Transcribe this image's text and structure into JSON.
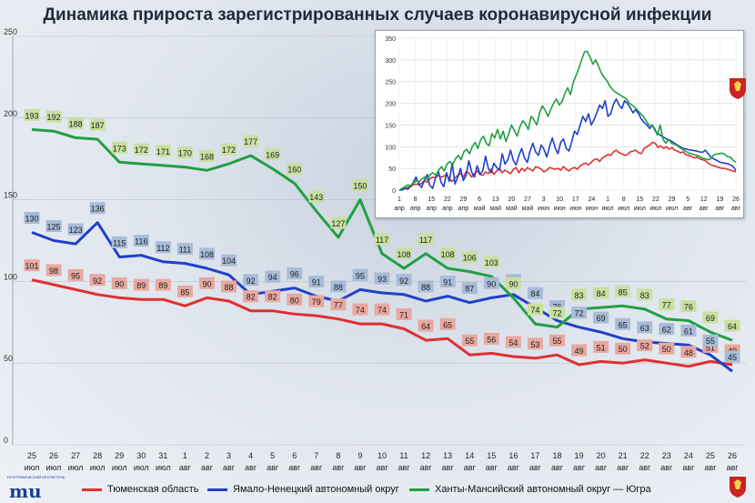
{
  "title": "Динамика прироста зарегистрированных случаев коронавирусной инфекции",
  "colors": {
    "tyumen": "#e03030",
    "yamal": "#2040c8",
    "hmao": "#20a040",
    "tyumen_box": "#e8a8a0",
    "yamal_box": "#a8bcd8",
    "hmao_box": "#c8e0a0"
  },
  "legend": [
    {
      "name": "Тюменская область",
      "color": "#e03030"
    },
    {
      "name": "Ямало-Ненецкий автономный округ",
      "color": "#2040c8"
    },
    {
      "name": "Ханты-Мансийский автономный округ — Югра",
      "color": "#20a040"
    }
  ],
  "logo_left": {
    "mark": "mu",
    "caption": "ГЕОГРАФИЧЕСКИЙ БЮЛЛЕТЕНЬ"
  },
  "logo_right_icon": "coat-of-arms-icon",
  "chart_data": [
    {
      "type": "line",
      "title": "Динамика прироста зарегистрированных случаев коронавирусной инфекции",
      "categories": [
        "25 июл",
        "26 июл",
        "27 июл",
        "28 июл",
        "29 июл",
        "30 июл",
        "31 июл",
        "1 авг",
        "2 авг",
        "3 авг",
        "4 авг",
        "5 авг",
        "6 авг",
        "7 авг",
        "8 авг",
        "9 авг",
        "10 авг",
        "11 авг",
        "12 авг",
        "13 авг",
        "14 авг",
        "15 авг",
        "16 авг",
        "17 авг",
        "18 авг",
        "19 авг",
        "20 авг",
        "21 авг",
        "22 авг",
        "23 авг",
        "24 авг",
        "25 авг",
        "26 авг"
      ],
      "ylim": [
        0,
        250
      ],
      "yticks": [
        0,
        50,
        100,
        150,
        200,
        250
      ],
      "grid": true,
      "legend_position": "bottom",
      "series": [
        {
          "name": "Тюменская область",
          "values": [
            101,
            98,
            95,
            92,
            90,
            89,
            89,
            85,
            90,
            88,
            82,
            82,
            80,
            79,
            77,
            74,
            74,
            71,
            64,
            65,
            55,
            56,
            54,
            53,
            55,
            49,
            51,
            50,
            52,
            50,
            48,
            51,
            49
          ]
        },
        {
          "name": "Ямало-Ненецкий автономный округ",
          "values": [
            130,
            125,
            123,
            136,
            115,
            116,
            112,
            111,
            108,
            104,
            92,
            94,
            96,
            91,
            88,
            95,
            93,
            92,
            88,
            91,
            87,
            90,
            92,
            84,
            76,
            72,
            69,
            65,
            63,
            62,
            61,
            55,
            45
          ]
        },
        {
          "name": "Ханты-Мансийский автономный округ — Югра",
          "values": [
            193,
            192,
            188,
            187,
            173,
            172,
            171,
            170,
            168,
            172,
            177,
            169,
            160,
            143,
            127,
            150,
            117,
            108,
            117,
            108,
            106,
            103,
            90,
            74,
            72,
            83,
            84,
            85,
            83,
            77,
            76,
            69,
            64
          ]
        }
      ]
    },
    {
      "type": "line",
      "title": "",
      "x_tick_labels": [
        "1 апр",
        "8 апр",
        "15 апр",
        "22 апр",
        "29 апр",
        "6 май",
        "13 май",
        "20 май",
        "27 май",
        "3 июн",
        "10 июн",
        "17 июн",
        "24 июн",
        "1 июл",
        "8 июл",
        "15 июл",
        "22 июл",
        "29 июл",
        "5 авг",
        "12 авг",
        "19 авг",
        "26 авг"
      ],
      "ylim": [
        0,
        350
      ],
      "yticks": [
        0,
        50,
        100,
        150,
        200,
        250,
        300,
        350
      ],
      "grid": true,
      "series": [
        {
          "name": "Тюменская область",
          "values": [
            0,
            2,
            4,
            6,
            8,
            12,
            14,
            12,
            16,
            22,
            18,
            26,
            30,
            28,
            34,
            30,
            32,
            36,
            26,
            20,
            28,
            34,
            38,
            30,
            42,
            40,
            30,
            38,
            44,
            36,
            34,
            42,
            38,
            48,
            36,
            44,
            50,
            40,
            46,
            42,
            38,
            48,
            52,
            40,
            50,
            44,
            52,
            48,
            44,
            54,
            52,
            48,
            42,
            46,
            52,
            50,
            48,
            50,
            46,
            54,
            48,
            44,
            50,
            52,
            48,
            56,
            60,
            62,
            58,
            64,
            70,
            72,
            66,
            74,
            78,
            82,
            80,
            88,
            92,
            86,
            84,
            80,
            82,
            88,
            90,
            92,
            86,
            84,
            96,
            100,
            104,
            110,
            108,
            98,
            102,
            96,
            100,
            94,
            98,
            92,
            90,
            86,
            88,
            82,
            80,
            78,
            74,
            76,
            72,
            70,
            68,
            62,
            58,
            56,
            54,
            52,
            50,
            50,
            48,
            46,
            44,
            42
          ]
        },
        {
          "name": "Ямало-Ненецкий автономный округ",
          "values": [
            0,
            0,
            4,
            2,
            8,
            18,
            30,
            14,
            6,
            22,
            36,
            10,
            4,
            28,
            44,
            18,
            8,
            40,
            20,
            62,
            14,
            30,
            50,
            22,
            34,
            68,
            42,
            30,
            56,
            36,
            44,
            78,
            50,
            40,
            62,
            52,
            46,
            84,
            60,
            70,
            92,
            68,
            58,
            80,
            96,
            74,
            64,
            90,
            108,
            88,
            80,
            104,
            94,
            76,
            100,
            120,
            98,
            84,
            110,
            118,
            96,
            90,
            112,
            136,
            128,
            150,
            170,
            158,
            176,
            150,
            162,
            178,
            196,
            188,
            206,
            170,
            176,
            198,
            210,
            196,
            188,
            206,
            200,
            190,
            178,
            186,
            176,
            164,
            156,
            150,
            142,
            150,
            136,
            130,
            126,
            122,
            118,
            116,
            112,
            108,
            104,
            100,
            96,
            95,
            93,
            92,
            91,
            90,
            88,
            87,
            92,
            84,
            76,
            72,
            69,
            65,
            63,
            62,
            61,
            58,
            55,
            45
          ]
        },
        {
          "name": "Ханты-Мансийский автономный округ — Югра",
          "values": [
            0,
            4,
            8,
            12,
            10,
            16,
            22,
            18,
            26,
            30,
            24,
            36,
            40,
            34,
            46,
            54,
            44,
            60,
            66,
            58,
            72,
            80,
            70,
            88,
            94,
            84,
            100,
            110,
            96,
            116,
            124,
            108,
            102,
            130,
            120,
            140,
            118,
            136,
            112,
            130,
            150,
            138,
            124,
            146,
            160,
            152,
            140,
            170,
            162,
            150,
            178,
            194,
            184,
            170,
            186,
            200,
            210,
            196,
            204,
            222,
            236,
            220,
            248,
            264,
            280,
            300,
            318,
            320,
            306,
            290,
            300,
            286,
            270,
            260,
            252,
            240,
            232,
            226,
            222,
            218,
            214,
            210,
            200,
            196,
            190,
            184,
            176,
            170,
            160,
            150,
            148,
            143,
            127,
            150,
            117,
            108,
            117,
            108,
            106,
            103,
            98,
            94,
            90,
            86,
            84,
            82,
            80,
            78,
            74,
            72,
            70,
            72,
            80,
            83,
            84,
            85,
            83,
            77,
            76,
            69,
            64
          ]
        }
      ]
    }
  ]
}
